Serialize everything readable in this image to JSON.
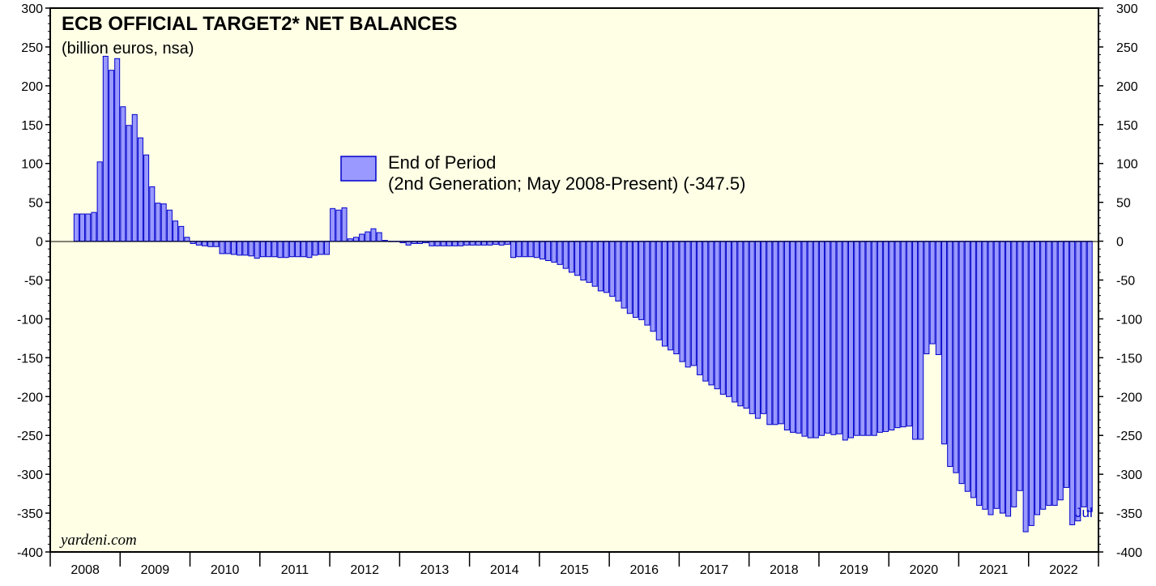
{
  "chart_data": {
    "type": "bar",
    "title": "ECB OFFICIAL TARGET2* NET BALANCES",
    "subtitle": "(billion euros, nsa)",
    "series_name": "End of Period",
    "series_detail": "(2nd Generation; May 2008-Present) (-347.5)",
    "source": "yardeni.com",
    "last_label": "Jul",
    "ylim": [
      -400,
      300
    ],
    "yticks": [
      300,
      250,
      200,
      150,
      100,
      50,
      0,
      -50,
      -100,
      -150,
      -200,
      -250,
      -300,
      -350,
      -400
    ],
    "x_start": "2008-05",
    "x_labels": [
      "2008",
      "2009",
      "2010",
      "2011",
      "2012",
      "2013",
      "2014",
      "2015",
      "2016",
      "2017",
      "2018",
      "2019",
      "2020",
      "2021",
      "2022"
    ],
    "values": [
      35,
      35,
      35,
      37,
      102,
      238,
      220,
      235,
      173,
      149,
      163,
      133,
      111,
      70,
      49,
      48,
      40,
      26,
      19,
      5,
      -3,
      -5,
      -6,
      -7,
      -7,
      -16,
      -16,
      -17,
      -18,
      -18,
      -19,
      -22,
      -20,
      -20,
      -20,
      -21,
      -21,
      -20,
      -20,
      -20,
      -21,
      -18,
      -17,
      -17,
      42,
      40,
      43,
      3,
      5,
      9,
      12,
      16,
      11,
      1,
      0,
      0,
      -2,
      -5,
      -3,
      -3,
      -2,
      -6,
      -6,
      -6,
      -6,
      -6,
      -6,
      -5,
      -5,
      -5,
      -5,
      -5,
      -4,
      -5,
      -4,
      -21,
      -20,
      -20,
      -20,
      -21,
      -23,
      -25,
      -27,
      -30,
      -35,
      -40,
      -44,
      -50,
      -53,
      -58,
      -64,
      -66,
      -71,
      -77,
      -86,
      -93,
      -98,
      -101,
      -108,
      -116,
      -127,
      -135,
      -140,
      -145,
      -155,
      -162,
      -160,
      -172,
      -180,
      -185,
      -190,
      -197,
      -200,
      -207,
      -212,
      -215,
      -222,
      -228,
      -222,
      -236,
      -236,
      -235,
      -243,
      -246,
      -247,
      -251,
      -253,
      -253,
      -250,
      -247,
      -249,
      -248,
      -256,
      -253,
      -250,
      -250,
      -250,
      -250,
      -246,
      -245,
      -243,
      -240,
      -239,
      -238,
      -255,
      -255,
      -145,
      -132,
      -146,
      -261,
      -290,
      -298,
      -312,
      -322,
      -330,
      -340,
      -345,
      -352,
      -344,
      -350,
      -354,
      -342,
      -321,
      -374,
      -366,
      -352,
      -345,
      -340,
      -340,
      -333,
      -317,
      -365,
      -360,
      -342,
      -348
    ]
  }
}
